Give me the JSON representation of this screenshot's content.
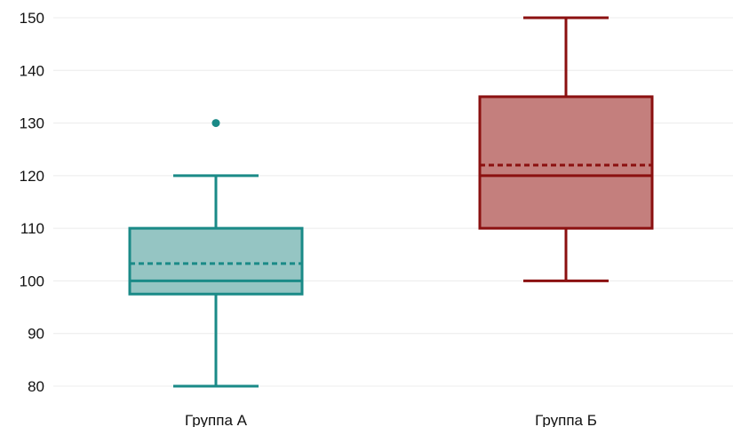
{
  "chart_data": {
    "type": "box",
    "title": "",
    "xlabel": "",
    "ylabel": "",
    "ylim": [
      80,
      150
    ],
    "yticks": [
      80,
      90,
      100,
      110,
      120,
      130,
      140,
      150
    ],
    "grid": true,
    "categories": [
      "Группа А",
      "Группа Б"
    ],
    "boxes": [
      {
        "category": "Группа А",
        "whisker_low": 80,
        "q1": 97.5,
        "median": 100,
        "q3": 110,
        "whisker_high": 120,
        "mean": 103.3,
        "outliers": [
          130
        ],
        "color": "#1a8a87",
        "fill": "#95c5c3"
      },
      {
        "category": "Группа Б",
        "whisker_low": 100,
        "q1": 110,
        "median": 120,
        "q3": 135,
        "whisker_high": 150,
        "mean": 122,
        "outliers": [],
        "color": "#8b1010",
        "fill": "#c47f7d"
      }
    ]
  }
}
